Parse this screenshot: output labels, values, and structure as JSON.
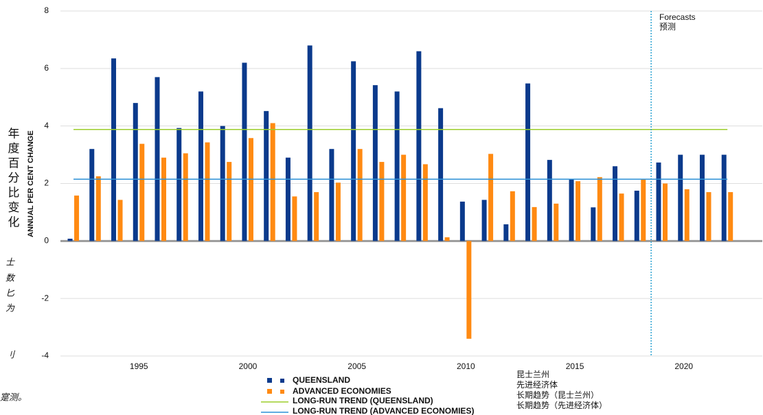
{
  "chart_data": {
    "type": "bar",
    "y_label": "ANNUAL PER CENT CHANGE",
    "y_label_zh": "年度百分比变化",
    "side_fragments": [
      "士",
      "数",
      "匕",
      "为",
      "刂",
      "寔测。"
    ],
    "annotation": "Forecasts",
    "annotation_zh": "预测",
    "forecast_x": 2018.5,
    "x": [
      1992,
      1993,
      1994,
      1995,
      1996,
      1997,
      1998,
      1999,
      2000,
      2001,
      2002,
      2003,
      2004,
      2005,
      2006,
      2007,
      2008,
      2009,
      2010,
      2011,
      2012,
      2013,
      2014,
      2015,
      2016,
      2017,
      2018,
      2019,
      2020,
      2021,
      2022
    ],
    "xlim": [
      1991.4,
      2023.6
    ],
    "xticks": [
      1995,
      2000,
      2005,
      2010,
      2015,
      2020
    ],
    "ylim": [
      -4,
      8
    ],
    "yticks": [
      -4,
      -2,
      0,
      2,
      4,
      6,
      8
    ],
    "grid": true,
    "series": [
      {
        "name": "QUEENSLAND",
        "name_zh": "昆士兰州",
        "color": "#0b3a8c",
        "values": [
          0.08,
          3.2,
          6.35,
          4.8,
          5.7,
          3.93,
          5.2,
          4.0,
          6.2,
          4.52,
          2.9,
          6.8,
          3.2,
          6.25,
          5.42,
          5.2,
          6.6,
          4.62,
          1.37,
          1.43,
          0.58,
          5.48,
          2.82,
          2.15,
          1.17,
          2.6,
          1.75,
          2.73,
          3.0,
          3.0,
          3.0
        ]
      },
      {
        "name": "ADVANCED ECONOMIES",
        "name_zh": "先进经济体",
        "color": "#ff8a12",
        "values": [
          1.58,
          2.25,
          1.43,
          3.38,
          2.9,
          3.05,
          3.43,
          2.75,
          3.58,
          4.1,
          1.55,
          1.7,
          2.03,
          3.2,
          2.75,
          3.0,
          2.67,
          0.13,
          -3.4,
          3.03,
          1.73,
          1.18,
          1.3,
          2.08,
          2.22,
          1.65,
          2.13,
          2.0,
          1.8,
          1.7,
          1.7
        ]
      }
    ],
    "trends": [
      {
        "name": "LONG-RUN TREND (QUEENSLAND)",
        "name_zh": "长期趋势（昆士兰州）",
        "color": "#9bcd2a",
        "value": 3.88
      },
      {
        "name": "LONG-RUN TREND (ADVANCED ECONOMIES)",
        "name_zh": "长期趋势（先进经济体）",
        "color": "#2b8fd6",
        "value": 2.15
      }
    ]
  }
}
